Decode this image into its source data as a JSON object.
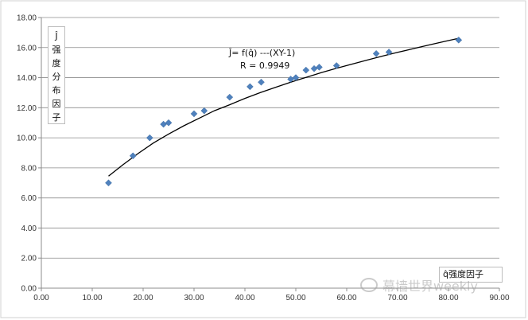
{
  "chart_data": {
    "type": "scatter",
    "ylabel": "Ĵ\n强\n度\n分\n布\n因\n子",
    "xlabel": "q̂强度因子",
    "annotation_lines": [
      "Ĵ= f(q̂) ---(XY-1)",
      "R = 0.9949"
    ],
    "xlim": [
      0,
      90
    ],
    "ylim": [
      0,
      18
    ],
    "x_ticks": [
      0,
      10,
      20,
      30,
      40,
      50,
      60,
      70,
      80,
      90
    ],
    "y_ticks": [
      0,
      2,
      4,
      6,
      8,
      10,
      12,
      14,
      16,
      18
    ],
    "x_tick_labels": [
      "0.00",
      "10.00",
      "20.00",
      "30.00",
      "40.00",
      "50.00",
      "60.00",
      "70.00",
      "80.00",
      "90.00"
    ],
    "y_tick_labels": [
      "0.00",
      "2.00",
      "4.00",
      "6.00",
      "8.00",
      "10.00",
      "12.00",
      "14.00",
      "16.00",
      "18.00"
    ],
    "grid": "horizontal",
    "points": [
      {
        "x": 13.2,
        "y": 7.0
      },
      {
        "x": 18.0,
        "y": 8.8
      },
      {
        "x": 21.3,
        "y": 10.0
      },
      {
        "x": 24.0,
        "y": 10.9
      },
      {
        "x": 25.0,
        "y": 11.0
      },
      {
        "x": 30.0,
        "y": 11.6
      },
      {
        "x": 32.0,
        "y": 11.8
      },
      {
        "x": 37.0,
        "y": 12.7
      },
      {
        "x": 41.0,
        "y": 13.4
      },
      {
        "x": 43.2,
        "y": 13.7
      },
      {
        "x": 49.0,
        "y": 13.9
      },
      {
        "x": 50.0,
        "y": 14.0
      },
      {
        "x": 52.0,
        "y": 14.5
      },
      {
        "x": 53.6,
        "y": 14.6
      },
      {
        "x": 54.6,
        "y": 14.7
      },
      {
        "x": 58.0,
        "y": 14.8
      },
      {
        "x": 65.8,
        "y": 15.6
      },
      {
        "x": 68.3,
        "y": 15.7
      },
      {
        "x": 82.0,
        "y": 16.5
      }
    ],
    "trendline": {
      "type": "power",
      "x": [
        13.2,
        16,
        19,
        22,
        25,
        28,
        31,
        34,
        37,
        40,
        43,
        46,
        49,
        52,
        55,
        58,
        61,
        64,
        67,
        70,
        73,
        76,
        79,
        82
      ],
      "y": [
        7.45,
        8.2,
        8.95,
        9.65,
        10.25,
        10.8,
        11.3,
        11.8,
        12.2,
        12.62,
        13.0,
        13.35,
        13.7,
        14.02,
        14.33,
        14.62,
        14.9,
        15.17,
        15.43,
        15.68,
        15.92,
        16.16,
        16.39,
        16.62
      ]
    },
    "marker_color": "#4f81bd",
    "line_color": "#000000"
  },
  "watermark": "幕墙世界weekly"
}
